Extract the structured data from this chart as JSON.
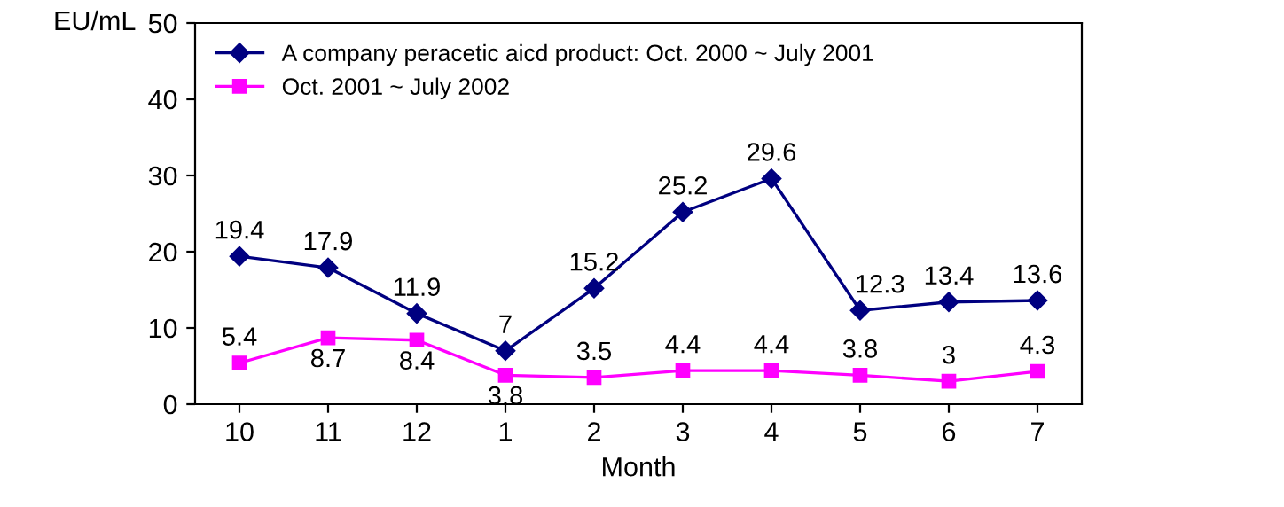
{
  "chart_data": {
    "type": "line",
    "ylabel": "EU/mL",
    "xlabel": "Month",
    "categories": [
      "10",
      "11",
      "12",
      "1",
      "2",
      "3",
      "4",
      "5",
      "6",
      "7"
    ],
    "series": [
      {
        "name": "A company peracetic aicd product: Oct. 2000 ~ July 2001",
        "color": "#000080",
        "marker": "diamond",
        "values": [
          19.4,
          17.9,
          11.9,
          7,
          15.2,
          25.2,
          29.6,
          12.3,
          13.4,
          13.6
        ]
      },
      {
        "name": "Oct. 2001 ~ July 2002",
        "color": "#ff00ff",
        "marker": "square",
        "values": [
          5.4,
          8.7,
          8.4,
          3.8,
          3.5,
          4.4,
          4.4,
          3.8,
          3,
          4.3
        ]
      }
    ],
    "ylim": [
      0,
      50
    ],
    "yticks": [
      0,
      10,
      20,
      30,
      40,
      50
    ],
    "grid": false,
    "legend": "top left",
    "data_labels": true,
    "line_style": "solid"
  }
}
